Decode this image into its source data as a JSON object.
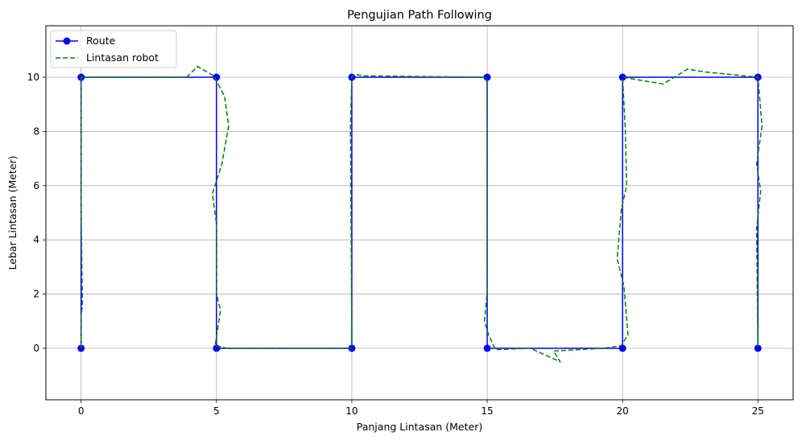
{
  "chart_data": {
    "type": "line",
    "title": "Pengujian Path Following",
    "xlabel": "Panjang Lintasan (Meter)",
    "ylabel": "Lebar Lintasan (Meter)",
    "xlim": [
      -1.3,
      26.3
    ],
    "ylim": [
      -1.9,
      11.9
    ],
    "xticks": [
      0,
      5,
      10,
      15,
      20,
      25
    ],
    "yticks": [
      0,
      2,
      4,
      6,
      8,
      10
    ],
    "grid": true,
    "legend_position": "top-left",
    "series": [
      {
        "name": "Route",
        "color": "#0000ff",
        "style": "solid-with-markers",
        "x": [
          0,
          0,
          5,
          5,
          10,
          10,
          15,
          15,
          20,
          20,
          25,
          25
        ],
        "y": [
          0,
          10,
          10,
          0,
          0,
          10,
          10,
          0,
          0,
          10,
          10,
          0
        ]
      },
      {
        "name": "Lintasan robot",
        "color": "#008000",
        "style": "dashed",
        "x": [
          0,
          0,
          0.05,
          0,
          0,
          0.8,
          3.3,
          3.9,
          4.3,
          4.9,
          5.3,
          5.45,
          5.2,
          4.85,
          5.0,
          5.0,
          5.15,
          4.95,
          5.4,
          10.0,
          9.95,
          10.0,
          10.1,
          10.5,
          14.8,
          14.95,
          15.0,
          15.0,
          14.9,
          15.05,
          15.3,
          16.6,
          17.7,
          17.45,
          19.3,
          19.95,
          20.2,
          20.05,
          19.8,
          19.95,
          20.15,
          20.1,
          20.0,
          21.5,
          22.4,
          23.0,
          25.0,
          25.15,
          24.95,
          25.1,
          24.95,
          25.0
        ],
        "y": [
          0,
          1.2,
          1.6,
          5.0,
          10.0,
          10.0,
          10.0,
          10.0,
          10.4,
          10.05,
          9.3,
          8.2,
          6.8,
          5.7,
          4.6,
          2.0,
          1.4,
          0.1,
          0.0,
          0.0,
          8.2,
          10.0,
          10.1,
          10.05,
          10.0,
          10.0,
          9.8,
          2.1,
          1.0,
          0.5,
          -0.05,
          0.0,
          -0.5,
          -0.1,
          0.0,
          0.1,
          0.5,
          2.3,
          3.3,
          5.1,
          6.0,
          8.1,
          10.0,
          9.75,
          10.3,
          10.2,
          10.0,
          8.2,
          6.8,
          5.8,
          4.4,
          0.0
        ]
      }
    ]
  }
}
